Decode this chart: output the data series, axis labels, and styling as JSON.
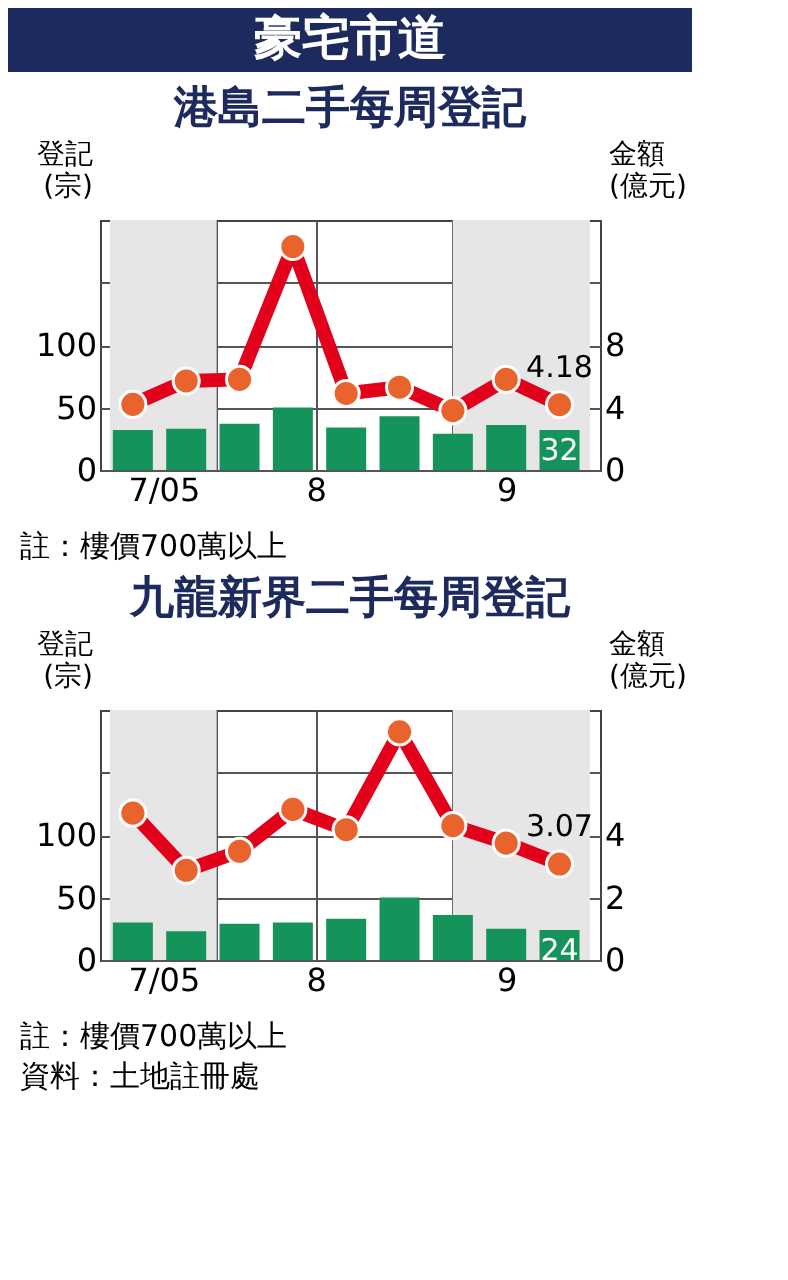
{
  "chart_data": [
    {
      "type": "other",
      "title": "豪宅市道"
    },
    {
      "type": "bar",
      "title": "港島二手每周登記",
      "ylabel": "登記\n(宗)",
      "y2label": "金額\n(億元)",
      "x": [
        "2005-07-21",
        "2005-07-28",
        "2005-08-04",
        "2005-08-11",
        "2005-08-18",
        "2005-08-25",
        "2005-09-01",
        "2005-09-08",
        "2005-09-15"
      ],
      "xlim": [
        "2005-07-18",
        "2005-09-19"
      ],
      "xticks": [
        {
          "value": "2005-07-25",
          "label": "7/05"
        },
        {
          "value": "2005-08-01",
          "label": null
        },
        {
          "value": "2005-08-14",
          "label": "8"
        },
        {
          "value": "2005-09-01",
          "label": null
        },
        {
          "value": "2005-09-08",
          "label": "9"
        }
      ],
      "ylim": [
        0,
        200
      ],
      "yticks": [
        0,
        50,
        100,
        {
          "value": 150,
          "label": null
        }
      ],
      "y2lim": [
        0,
        16
      ],
      "y2ticks": [
        0,
        4,
        8
      ],
      "grid": true,
      "marker": "circle",
      "line_style": "solid",
      "bands": [
        {
          "axis": "x",
          "from": "2005-07-18",
          "to": "2005-08-01",
          "color": "#e6e6e6"
        },
        {
          "axis": "x",
          "from": "2005-09-01",
          "to": "2005-09-19",
          "color": "#e6e6e6"
        }
      ],
      "series": [
        {
          "type": "bar",
          "color": "#14935a",
          "values": [
            32,
            33,
            37,
            50,
            34,
            43,
            29,
            36,
            32
          ],
          "value_labels": [
            null,
            null,
            null,
            null,
            null,
            null,
            null,
            null,
            "32"
          ]
        },
        {
          "type": "line",
          "axis": "y2",
          "color": "#e3001b",
          "values": [
            4.2,
            5.7,
            5.8,
            14.3,
            4.9,
            5.3,
            3.8,
            5.8,
            4.18
          ],
          "value_labels": [
            null,
            null,
            null,
            null,
            null,
            null,
            null,
            null,
            "4.18"
          ]
        }
      ],
      "annotations": [
        "註：樓價700萬以上"
      ]
    },
    {
      "type": "bar",
      "title": "九龍新界二手每周登記",
      "ylabel": "登記\n(宗)",
      "y2label": "金額\n(億元)",
      "x": [
        "2005-07-21",
        "2005-07-28",
        "2005-08-04",
        "2005-08-11",
        "2005-08-18",
        "2005-08-25",
        "2005-09-01",
        "2005-09-08",
        "2005-09-15"
      ],
      "xlim": [
        "2005-07-18",
        "2005-09-19"
      ],
      "xticks": [
        {
          "value": "2005-07-25",
          "label": "7/05"
        },
        {
          "value": "2005-08-01",
          "label": null
        },
        {
          "value": "2005-08-14",
          "label": "8"
        },
        {
          "value": "2005-09-01",
          "label": null
        },
        {
          "value": "2005-09-08",
          "label": "9"
        }
      ],
      "ylim": [
        0,
        200
      ],
      "yticks": [
        0,
        50,
        100,
        {
          "value": 150,
          "label": null
        }
      ],
      "y2lim": [
        0,
        8
      ],
      "y2ticks": [
        0,
        2,
        4
      ],
      "grid": true,
      "marker": "circle",
      "line_style": "solid",
      "bands": [
        {
          "axis": "x",
          "from": "2005-07-18",
          "to": "2005-08-01",
          "color": "#e6e6e6"
        },
        {
          "axis": "x",
          "from": "2005-09-01",
          "to": "2005-09-19",
          "color": "#e6e6e6"
        }
      ],
      "series": [
        {
          "type": "bar",
          "color": "#14935a",
          "values": [
            30,
            23,
            29,
            30,
            33,
            50,
            36,
            25,
            24
          ],
          "value_labels": [
            null,
            null,
            null,
            null,
            null,
            null,
            null,
            null,
            "24"
          ]
        },
        {
          "type": "line",
          "axis": "y2",
          "color": "#e3001b",
          "values": [
            4.7,
            2.87,
            3.48,
            4.82,
            4.17,
            7.3,
            4.3,
            3.74,
            3.07
          ],
          "value_labels": [
            null,
            null,
            null,
            null,
            null,
            null,
            null,
            null,
            "3.07"
          ]
        }
      ],
      "annotations": [
        "註：樓價700萬以上",
        "資料：土地註冊處"
      ]
    }
  ]
}
